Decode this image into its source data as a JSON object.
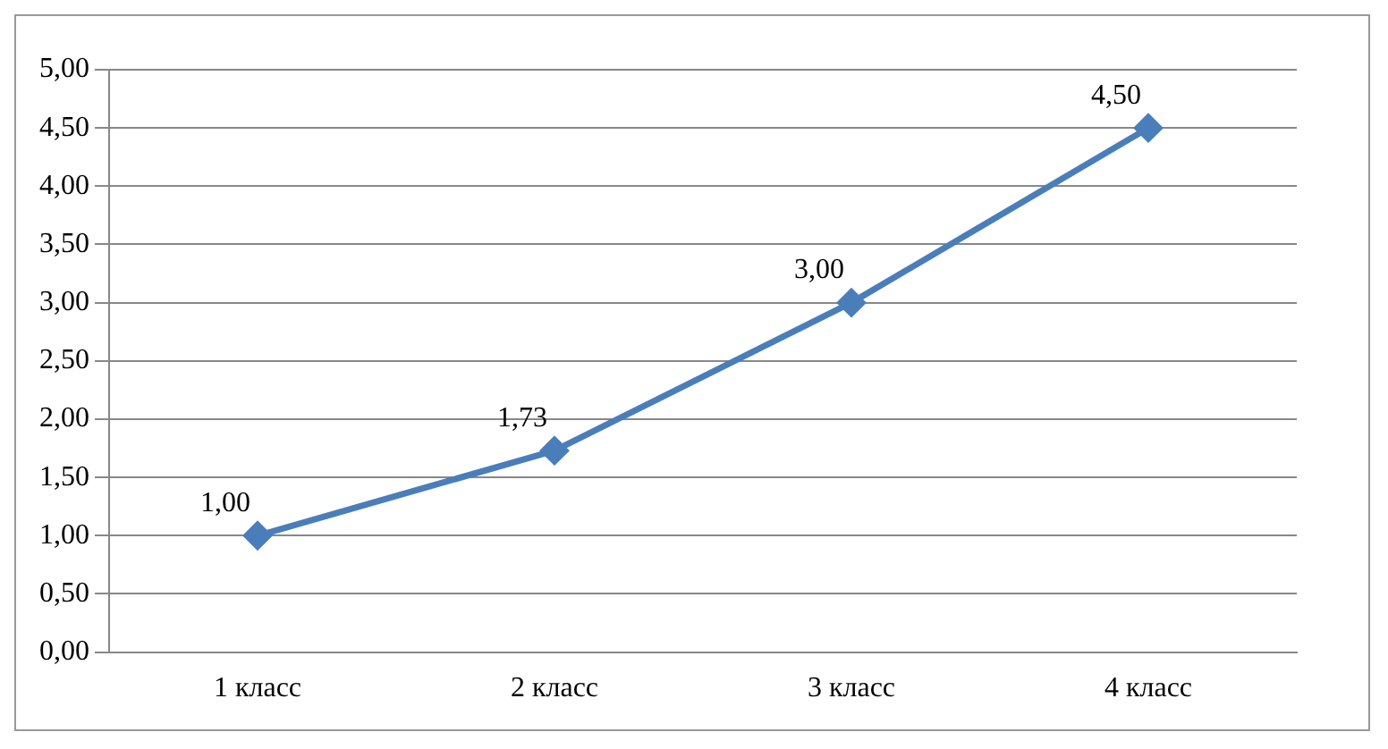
{
  "chart_data": {
    "type": "line",
    "categories": [
      "1 класс",
      "2 класс",
      "3 класс",
      "4 класс"
    ],
    "series": [
      {
        "color": "#4a7ebb",
        "values": [
          1.0,
          1.73,
          3.0,
          4.5
        ],
        "value_labels": [
          "1,00",
          "1,73",
          "3,00",
          "4,50"
        ]
      }
    ],
    "ylim": [
      0,
      5
    ],
    "yticks": [
      {
        "value": 0,
        "label": "0,00"
      },
      {
        "value": 0.5,
        "label": "0,50"
      },
      {
        "value": 1,
        "label": "1,00"
      },
      {
        "value": 1.5,
        "label": "1,50"
      },
      {
        "value": 2,
        "label": "2,00"
      },
      {
        "value": 2.5,
        "label": "2,50"
      },
      {
        "value": 3,
        "label": "3,00"
      },
      {
        "value": 3.5,
        "label": "3,50"
      },
      {
        "value": 4,
        "label": "4,00"
      },
      {
        "value": 4.5,
        "label": "4,50"
      },
      {
        "value": 5,
        "label": "5,00"
      }
    ],
    "grid": "y",
    "legend": false,
    "marker": "diamond",
    "line_style": "solid"
  }
}
